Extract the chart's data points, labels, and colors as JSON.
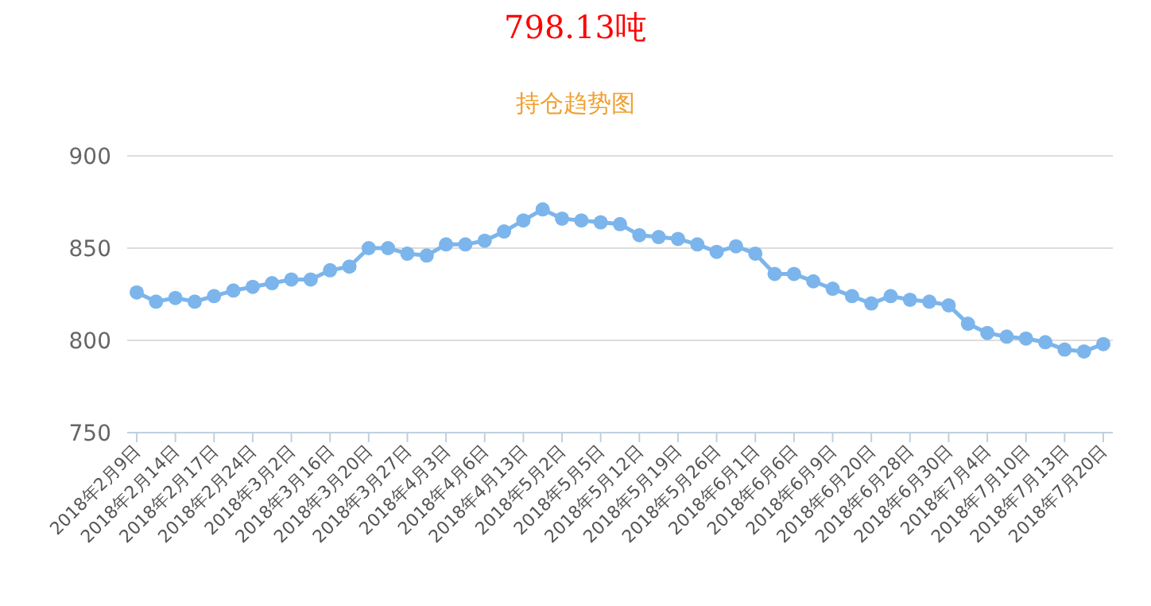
{
  "chart_data": {
    "type": "line",
    "title": "798.13吨",
    "subtitle": "持仓趋势图",
    "categories": [
      "2018年2月9日",
      null,
      "2018年2月14日",
      null,
      "2018年2月17日",
      null,
      "2018年2月24日",
      null,
      "2018年3月2日",
      null,
      "2018年3月16日",
      null,
      "2018年3月20日",
      null,
      "2018年3月27日",
      null,
      "2018年4月3日",
      null,
      "2018年4月6日",
      null,
      "2018年4月13日",
      null,
      "2018年5月2日",
      null,
      "2018年5月5日",
      null,
      "2018年5月12日",
      null,
      "2018年5月19日",
      null,
      "2018年5月26日",
      null,
      "2018年6月1日",
      null,
      "2018年6月6日",
      null,
      "2018年6月9日",
      null,
      "2018年6月20日",
      null,
      "2018年6月28日",
      null,
      "2018年6月30日",
      null,
      "2018年7月4日",
      null,
      "2018年7月10日",
      null,
      "2018年7月13日",
      null,
      "2018年7月20日"
    ],
    "series": [
      {
        "color": "#7cb5ec",
        "values": [
          826,
          821,
          823,
          821,
          824,
          827,
          829,
          831,
          833,
          833,
          838,
          840,
          850,
          850,
          847,
          846,
          852,
          852,
          854,
          859,
          865,
          871,
          866,
          865,
          864,
          863,
          857,
          856,
          855,
          852,
          848,
          851,
          847,
          836,
          836,
          832,
          828,
          824,
          820,
          824,
          822,
          821,
          819,
          809,
          804,
          802,
          801,
          799,
          795,
          794,
          798
        ]
      }
    ],
    "ylim": [
      750,
      900
    ],
    "yticks": [
      750,
      800,
      850,
      900
    ],
    "grid": "y",
    "marker": "circle",
    "line_style": "solid"
  }
}
